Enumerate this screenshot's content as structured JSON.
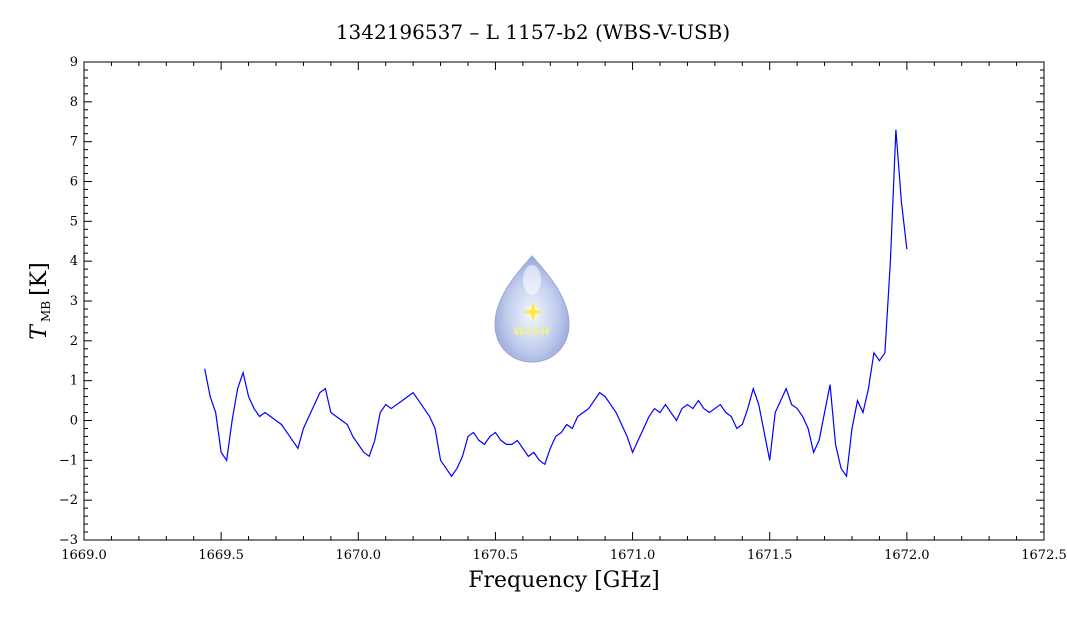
{
  "chart_data": {
    "type": "line",
    "title": "1342196537 – L 1157-b2 (WBS-V-USB)",
    "xlabel": "Frequency [GHz]",
    "ylabel_main": "T",
    "ylabel_sub": "MB",
    "ylabel_unit": "[K]",
    "xlim": [
      1669.0,
      1672.5
    ],
    "ylim": [
      -3,
      9
    ],
    "x_ticks": [
      1669.0,
      1669.5,
      1670.0,
      1670.5,
      1671.0,
      1671.5,
      1672.0,
      1672.5
    ],
    "x_tick_labels": [
      "1669.0",
      "1669.5",
      "1670.0",
      "1670.5",
      "1671.0",
      "1671.5",
      "1672.0",
      "1672.5"
    ],
    "y_ticks": [
      -3,
      -2,
      -1,
      0,
      1,
      2,
      3,
      4,
      5,
      6,
      7,
      8,
      9
    ],
    "y_tick_labels": [
      "−3",
      "−2",
      "−1",
      "0",
      "1",
      "2",
      "3",
      "4",
      "5",
      "6",
      "7",
      "8",
      "9"
    ],
    "grid": false,
    "series": [
      {
        "color": "#0000ff",
        "x": [
          1669.44,
          1669.46,
          1669.48,
          1669.5,
          1669.52,
          1669.54,
          1669.56,
          1669.58,
          1669.6,
          1669.62,
          1669.64,
          1669.66,
          1669.68,
          1669.7,
          1669.72,
          1669.74,
          1669.76,
          1669.78,
          1669.8,
          1669.82,
          1669.84,
          1669.86,
          1669.88,
          1669.9,
          1669.92,
          1669.94,
          1669.96,
          1669.98,
          1670.0,
          1670.02,
          1670.04,
          1670.06,
          1670.08,
          1670.1,
          1670.12,
          1670.14,
          1670.16,
          1670.18,
          1670.2,
          1670.22,
          1670.24,
          1670.26,
          1670.28,
          1670.3,
          1670.32,
          1670.34,
          1670.36,
          1670.38,
          1670.4,
          1670.42,
          1670.44,
          1670.46,
          1670.48,
          1670.5,
          1670.52,
          1670.54,
          1670.56,
          1670.58,
          1670.6,
          1670.62,
          1670.64,
          1670.66,
          1670.68,
          1670.7,
          1670.72,
          1670.74,
          1670.76,
          1670.78,
          1670.8,
          1670.82,
          1670.84,
          1670.86,
          1670.88,
          1670.9,
          1670.92,
          1670.94,
          1670.96,
          1670.98,
          1671.0,
          1671.02,
          1671.04,
          1671.06,
          1671.08,
          1671.1,
          1671.12,
          1671.14,
          1671.16,
          1671.18,
          1671.2,
          1671.22,
          1671.24,
          1671.26,
          1671.28,
          1671.3,
          1671.32,
          1671.34,
          1671.36,
          1671.38,
          1671.4,
          1671.42,
          1671.44,
          1671.46,
          1671.48,
          1671.5,
          1671.52,
          1671.54,
          1671.56,
          1671.58,
          1671.6,
          1671.62,
          1671.64,
          1671.66,
          1671.68,
          1671.7,
          1671.72,
          1671.74,
          1671.76,
          1671.78,
          1671.8,
          1671.82,
          1671.84,
          1671.86,
          1671.88,
          1671.9,
          1671.92,
          1671.94,
          1671.96,
          1671.98,
          1672.0
        ],
        "y": [
          1.3,
          0.6,
          0.2,
          -0.8,
          -1.0,
          0.0,
          0.8,
          1.2,
          0.6,
          0.3,
          0.1,
          0.2,
          0.1,
          0.0,
          -0.1,
          -0.3,
          -0.5,
          -0.7,
          -0.2,
          0.1,
          0.4,
          0.7,
          0.8,
          0.2,
          0.1,
          0.0,
          -0.1,
          -0.4,
          -0.6,
          -0.8,
          -0.9,
          -0.5,
          0.2,
          0.4,
          0.3,
          0.4,
          0.5,
          0.6,
          0.7,
          0.5,
          0.3,
          0.1,
          -0.2,
          -1.0,
          -1.2,
          -1.4,
          -1.2,
          -0.9,
          -0.4,
          -0.3,
          -0.5,
          -0.6,
          -0.4,
          -0.3,
          -0.5,
          -0.6,
          -0.6,
          -0.5,
          -0.7,
          -0.9,
          -0.8,
          -1.0,
          -1.1,
          -0.7,
          -0.4,
          -0.3,
          -0.1,
          -0.2,
          0.1,
          0.2,
          0.3,
          0.5,
          0.7,
          0.6,
          0.4,
          0.2,
          -0.1,
          -0.4,
          -0.8,
          -0.5,
          -0.2,
          0.1,
          0.3,
          0.2,
          0.4,
          0.2,
          0.0,
          0.3,
          0.4,
          0.3,
          0.5,
          0.3,
          0.2,
          0.3,
          0.4,
          0.2,
          0.1,
          -0.2,
          -0.1,
          0.3,
          0.8,
          0.4,
          -0.3,
          -1.0,
          0.2,
          0.5,
          0.8,
          0.4,
          0.3,
          0.1,
          -0.2,
          -0.8,
          -0.5,
          0.2,
          0.9,
          -0.6,
          -1.2,
          -1.4,
          -0.2,
          0.5,
          0.2,
          0.8,
          1.7,
          1.5,
          1.7,
          4.0,
          7.3,
          5.5,
          4.3
        ]
      }
    ],
    "watermark_text": "WISH"
  }
}
